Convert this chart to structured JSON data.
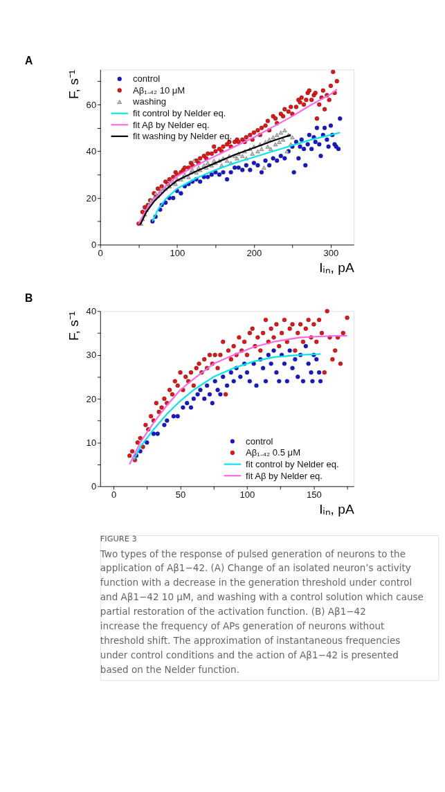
{
  "chart_data": [
    {
      "type": "scatter",
      "title": "A",
      "xlabel": "Iᵢₙ, pA",
      "ylabel": "F, s⁻¹",
      "xlim": [
        0,
        330
      ],
      "ylim": [
        0,
        75
      ],
      "xticks": [
        0,
        {
          "value": 50,
          "label": null
        },
        100,
        {
          "value": 150,
          "label": null
        },
        200,
        {
          "value": 250,
          "label": null
        },
        300
      ],
      "yticks": [
        0,
        {
          "value": 10,
          "label": null
        },
        20,
        {
          "value": 30,
          "label": null
        },
        40,
        {
          "value": 50,
          "label": null
        },
        60,
        {
          "value": 70,
          "label": null
        }
      ],
      "legend": "top left",
      "grid": false,
      "series": [
        {
          "name": "control",
          "marker": "circle",
          "color": "#1515d8",
          "x": [
            68,
            72,
            78,
            80,
            85,
            90,
            95,
            100,
            105,
            110,
            115,
            120,
            125,
            130,
            135,
            140,
            145,
            150,
            155,
            160,
            165,
            170,
            175,
            180,
            185,
            190,
            195,
            200,
            205,
            210,
            215,
            220,
            225,
            230,
            235,
            240,
            245,
            250,
            252,
            255,
            258,
            260,
            262,
            265,
            267,
            270,
            272,
            275,
            278,
            280,
            282,
            285,
            287,
            290,
            292,
            295,
            297,
            300,
            302,
            305,
            307,
            310,
            312
          ],
          "values": [
            10,
            12,
            15,
            17,
            18,
            20,
            20,
            23,
            22,
            25,
            26,
            27,
            28,
            27,
            29,
            29,
            30,
            31,
            30,
            31,
            28,
            31,
            33,
            33,
            32,
            34,
            32,
            35,
            34,
            31,
            36,
            34,
            37,
            36,
            38,
            37,
            40,
            42,
            31,
            44,
            37,
            42,
            45,
            41,
            34,
            43,
            47,
            41,
            46,
            44,
            50,
            43,
            38,
            47,
            50,
            45,
            42,
            51,
            47,
            43,
            42,
            41,
            54
          ]
        },
        {
          "name": "Aβ₁₋₄₂ 10 μM",
          "marker": "circle",
          "color": "#ee1111",
          "x": [
            50,
            55,
            58,
            62,
            65,
            70,
            73,
            75,
            80,
            85,
            88,
            90,
            95,
            98,
            100,
            105,
            108,
            110,
            115,
            118,
            120,
            125,
            128,
            130,
            135,
            138,
            140,
            145,
            148,
            150,
            155,
            158,
            160,
            165,
            168,
            170,
            175,
            178,
            180,
            185,
            188,
            190,
            195,
            198,
            200,
            205,
            208,
            210,
            215,
            218,
            220,
            225,
            228,
            230,
            235,
            238,
            240,
            245,
            248,
            250,
            255,
            258,
            260,
            262,
            265,
            268,
            270,
            272,
            275,
            278,
            280,
            282,
            285,
            288,
            290,
            292,
            295,
            298,
            300,
            303,
            305,
            308
          ],
          "values": [
            9,
            14,
            16,
            17,
            19,
            22,
            21,
            24,
            25,
            27,
            26,
            28,
            29,
            31,
            30,
            31,
            32,
            33,
            33,
            35,
            34,
            36,
            35,
            37,
            38,
            37,
            39,
            39,
            42,
            40,
            41,
            40,
            42,
            43,
            44,
            42,
            44,
            45,
            44,
            45,
            44,
            46,
            47,
            45,
            48,
            49,
            47,
            50,
            51,
            53,
            49,
            55,
            54,
            52,
            56,
            55,
            58,
            57,
            59,
            56,
            59,
            62,
            61,
            63,
            60,
            62,
            65,
            66,
            62,
            64,
            65,
            54,
            60,
            63,
            66,
            58,
            64,
            62,
            68,
            74,
            65,
            70
          ]
        },
        {
          "name": "washing",
          "marker": "triangle",
          "color": "#c0c0c0",
          "x": [
            53,
            55,
            58,
            60,
            63,
            66,
            70,
            72,
            75,
            78,
            80,
            85,
            88,
            90,
            95,
            98,
            100,
            105,
            108,
            110,
            115,
            118,
            120,
            122,
            125,
            128,
            130,
            135,
            138,
            140,
            145,
            148,
            150,
            155,
            158,
            160,
            165,
            168,
            170,
            175,
            178,
            180,
            185,
            188,
            190,
            195,
            198,
            200,
            205,
            208,
            210,
            213,
            215,
            218,
            220,
            222,
            225,
            228,
            230,
            233,
            235,
            238,
            240,
            243,
            245,
            248,
            250
          ],
          "values": [
            9,
            11,
            13,
            15,
            17,
            19,
            20,
            22,
            21,
            23,
            24,
            24,
            26,
            25,
            27,
            26,
            28,
            28,
            29,
            30,
            29,
            31,
            32,
            36,
            31,
            33,
            32,
            34,
            33,
            35,
            34,
            36,
            35,
            36,
            34,
            37,
            36,
            38,
            35,
            38,
            37,
            39,
            38,
            40,
            37,
            41,
            39,
            42,
            40,
            43,
            41,
            33,
            44,
            42,
            45,
            41,
            46,
            43,
            47,
            44,
            48,
            45,
            49,
            40,
            47,
            43,
            46
          ]
        },
        {
          "name": "fit control by Nelder eq.",
          "type": "line",
          "marker": "none",
          "color": "#00e5f0",
          "x": [
            68,
            75,
            85,
            100,
            125,
            150,
            175,
            200,
            225,
            250,
            275,
            300,
            312
          ],
          "values": [
            10,
            15,
            19.5,
            24,
            28.5,
            32,
            35,
            37.5,
            40,
            42.5,
            45,
            47,
            48
          ]
        },
        {
          "name": "fit Aβ by Nelder eq.",
          "type": "line",
          "marker": "none",
          "color": "#ff66e8",
          "x": [
            50,
            60,
            70,
            85,
            100,
            125,
            150,
            175,
            200,
            225,
            250,
            275,
            300,
            308
          ],
          "values": [
            9,
            15,
            19.5,
            25,
            29.3,
            34,
            38,
            42,
            46,
            50.5,
            55,
            60,
            64.5,
            66.5
          ]
        },
        {
          "name": "fit washing  by Nelder eq.",
          "type": "line",
          "marker": "none",
          "color": "#000000",
          "x": [
            52,
            60,
            70,
            85,
            100,
            125,
            150,
            175,
            200,
            225,
            248
          ],
          "values": [
            8.5,
            14,
            18.5,
            23.5,
            27.5,
            31.5,
            35,
            38.5,
            41.5,
            44.5,
            47
          ]
        }
      ]
    },
    {
      "type": "scatter",
      "title": "B",
      "xlabel": "Iᵢₙ, pA",
      "ylabel": "F, s⁻¹",
      "xlim": [
        -10,
        180
      ],
      "ylim": [
        0,
        40
      ],
      "xticks": [
        0,
        {
          "value": 25,
          "label": null
        },
        50,
        {
          "value": 75,
          "label": null
        },
        100,
        {
          "value": 125,
          "label": null
        },
        150,
        {
          "value": 175,
          "label": null
        }
      ],
      "yticks": [
        0,
        {
          "value": 5,
          "label": null
        },
        10,
        {
          "value": 15,
          "label": null
        },
        20,
        {
          "value": 25,
          "label": null
        },
        30,
        {
          "value": 35,
          "label": null
        },
        40
      ],
      "legend": "bottom right",
      "grid": false,
      "annotations": [
        "FIGURE 3",
        "Two types of the response of pulsed generation of neurons to the application of Aβ1−42. (A) Change of an isolated neuron’s activity function with a decrease in the generation threshold under control and Aβ1−42 10 μM, and washing with a control solution which cause partial restoration of the activation function. (B) Aβ1−42 increase the frequency of APs generation of neurons without threshold shift. The approximation of instantaneous frequencies under control conditions and the action of Aβ1−42 is presented based on the Nelder function."
      ],
      "series": [
        {
          "name": "control",
          "marker": "circle",
          "color": "#1515d8",
          "x": [
            17,
            20,
            25,
            30,
            33,
            38,
            40,
            45,
            48,
            52,
            55,
            58,
            60,
            63,
            65,
            68,
            70,
            72,
            74,
            76,
            78,
            80,
            82,
            85,
            88,
            90,
            92,
            95,
            98,
            100,
            102,
            105,
            107,
            110,
            112,
            114,
            116,
            118,
            120,
            122,
            124,
            126,
            128,
            130,
            132,
            134,
            136,
            138,
            140,
            142,
            144,
            146,
            148,
            149,
            150,
            152,
            154,
            155
          ],
          "values": [
            7,
            8,
            10,
            12,
            12,
            14,
            15,
            16,
            16,
            18,
            19,
            18,
            20,
            21,
            22,
            20,
            23,
            21,
            19,
            24,
            22,
            21,
            25,
            23,
            26,
            24,
            27,
            25,
            28,
            26,
            24,
            28,
            23,
            29,
            27,
            24,
            30,
            28,
            31,
            26,
            24,
            30,
            28,
            24,
            31,
            27,
            29,
            25,
            30,
            24,
            32,
            28,
            26,
            24,
            30,
            29,
            26,
            24
          ]
        },
        {
          "name": "Aβ₁₋₄₂ 0.5 μM",
          "marker": "circle",
          "color": "#ee1111",
          "x": [
            12,
            14,
            16,
            18,
            20,
            22,
            24,
            26,
            28,
            30,
            32,
            34,
            36,
            38,
            40,
            42,
            44,
            46,
            48,
            50,
            52,
            54,
            56,
            58,
            60,
            62,
            64,
            66,
            68,
            70,
            72,
            74,
            76,
            78,
            80,
            82,
            84,
            86,
            88,
            90,
            92,
            94,
            96,
            98,
            100,
            102,
            104,
            106,
            108,
            110,
            112,
            114,
            116,
            118,
            120,
            122,
            124,
            126,
            128,
            130,
            132,
            134,
            136,
            138,
            140,
            142,
            144,
            146,
            148,
            150,
            152,
            154,
            156,
            158,
            160,
            162,
            164,
            166,
            168,
            170,
            172,
            175
          ],
          "values": [
            7,
            8,
            6,
            10,
            11,
            9,
            14,
            13,
            16,
            15,
            19,
            17,
            18,
            20,
            19,
            22,
            21,
            24,
            23,
            26,
            22,
            25,
            24,
            26,
            23,
            27,
            28,
            26,
            29,
            27,
            30,
            28,
            30,
            27,
            30,
            33,
            21,
            31,
            29,
            32,
            30,
            34,
            31,
            33,
            30,
            35,
            36,
            32,
            34,
            31,
            35,
            38,
            33,
            36,
            34,
            37,
            32,
            35,
            38,
            33,
            36,
            37,
            31,
            35,
            37,
            33,
            36,
            38,
            34,
            37,
            33,
            38,
            35,
            26,
            40,
            34,
            29,
            31,
            34,
            28,
            35,
            38.5
          ]
        },
        {
          "name": "fit control by Nelder eq.",
          "type": "line",
          "marker": "none",
          "color": "#00e5f0",
          "x": [
            15,
            20,
            30,
            40,
            50,
            60,
            75,
            90,
            105,
            120,
            140,
            155
          ],
          "values": [
            6,
            9,
            13,
            16.5,
            19.5,
            22,
            25,
            27,
            28.5,
            29.5,
            30,
            30.2
          ]
        },
        {
          "name": "fit Aβ by Nelder eq.",
          "type": "line",
          "marker": "none",
          "color": "#ff66e8",
          "x": [
            12,
            20,
            30,
            40,
            50,
            60,
            75,
            90,
            105,
            120,
            140,
            160,
            175
          ],
          "values": [
            5,
            10,
            14.5,
            18.5,
            22,
            24.5,
            28,
            30,
            31.8,
            33,
            34,
            34.3,
            34.4
          ]
        }
      ]
    }
  ]
}
